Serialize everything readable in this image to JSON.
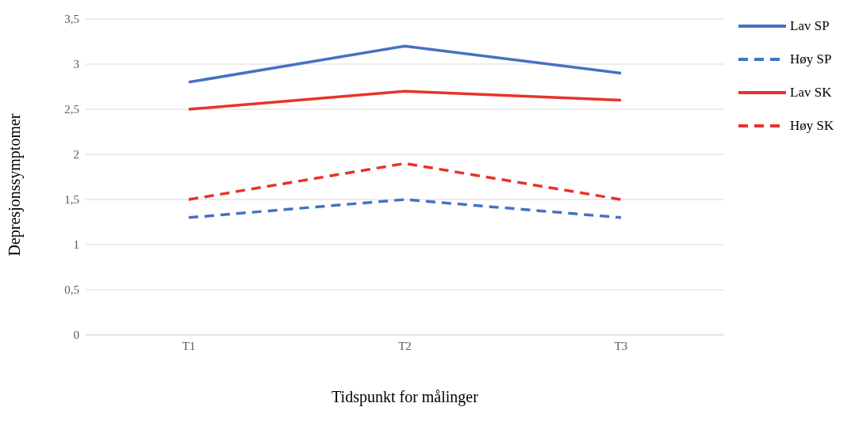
{
  "chart_data": {
    "type": "line",
    "xlabel": "Tidspunkt for målinger",
    "ylabel": "Depresjonssymptomer",
    "categories": [
      "T1",
      "T2",
      "T3"
    ],
    "series": [
      {
        "name": "Lav SP",
        "color": "#4472c4",
        "line_style": "solid",
        "values": [
          2.8,
          3.2,
          2.9
        ]
      },
      {
        "name": "Høy SP",
        "color": "#4472c4",
        "line_style": "dashed",
        "values": [
          1.3,
          1.5,
          1.3
        ]
      },
      {
        "name": "Lav SK",
        "color": "#e8332a",
        "line_style": "solid",
        "values": [
          2.5,
          2.7,
          2.6
        ]
      },
      {
        "name": "Høy SK",
        "color": "#e8332a",
        "line_style": "dashed",
        "values": [
          1.5,
          1.9,
          1.5
        ]
      }
    ],
    "ylim": [
      0,
      3.5
    ],
    "yticks": [
      0,
      {
        "value": 0.5,
        "label": "0,5"
      },
      1,
      {
        "value": 1.5,
        "label": "1,5"
      },
      2,
      {
        "value": 2.5,
        "label": "2,5"
      },
      3,
      {
        "value": 3.5,
        "label": "3,5"
      }
    ],
    "grid": "y",
    "legend": "right",
    "marker": "none"
  }
}
